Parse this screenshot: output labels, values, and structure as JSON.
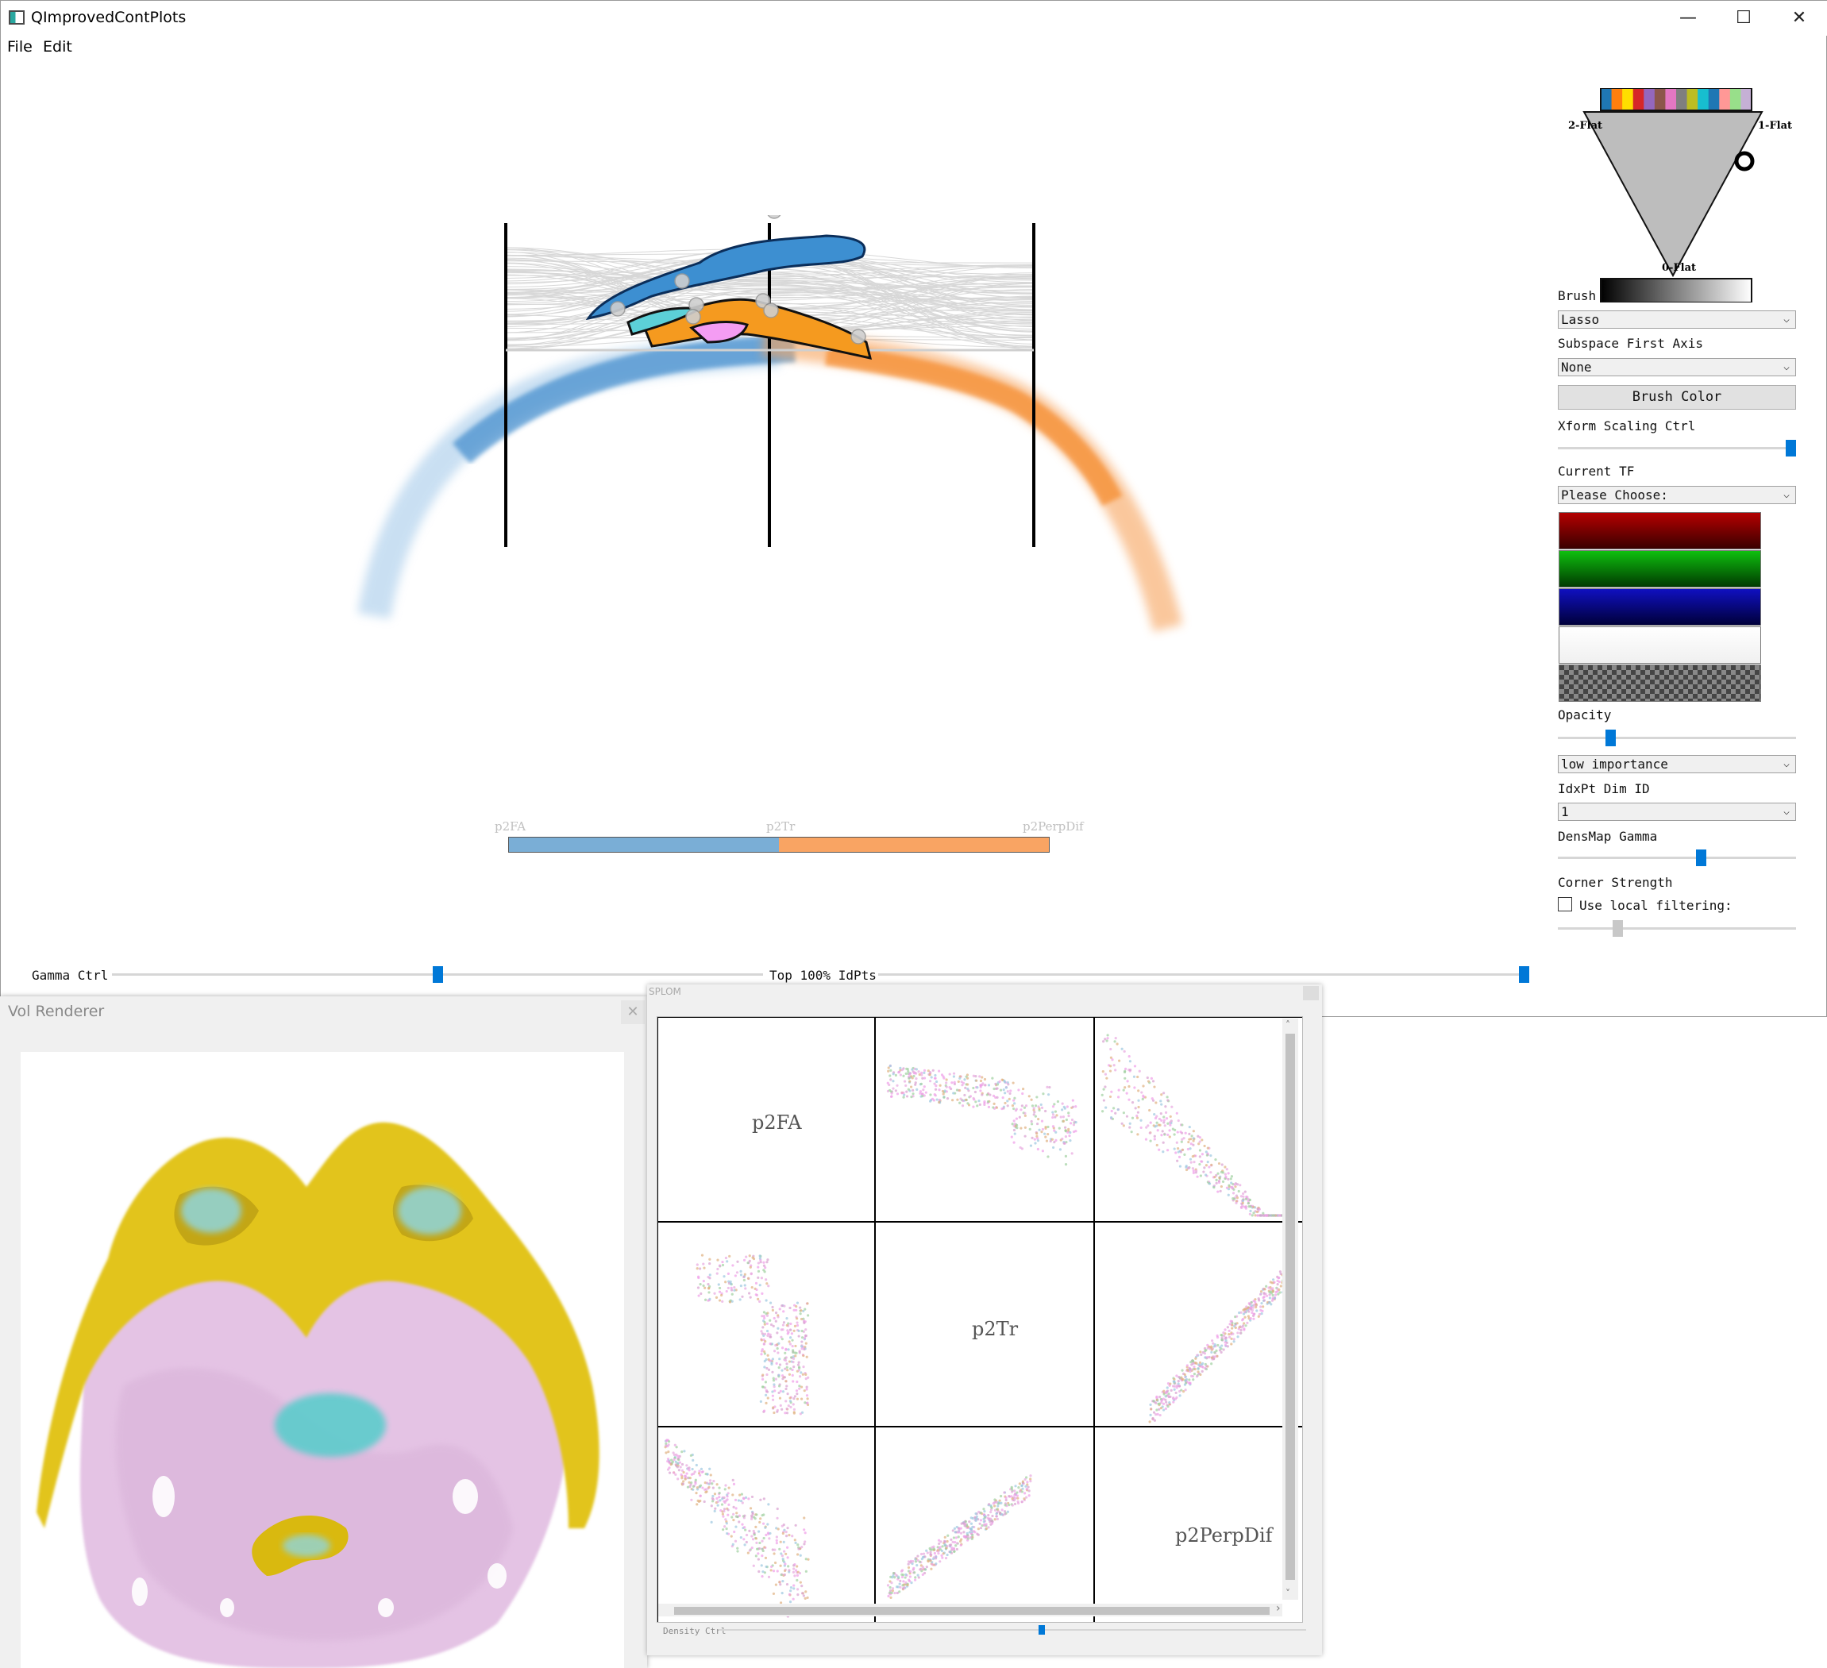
{
  "window": {
    "title": "QImprovedContPlots",
    "minimize_glyph": "—",
    "maximize_glyph": "☐",
    "close_glyph": "✕"
  },
  "menu": [
    "File",
    "Edit"
  ],
  "pcp": {
    "axes": [
      "p2FA",
      "p2Tr",
      "p2PerpDif"
    ],
    "bar_colors": [
      "#7aaed6",
      "#f9a463"
    ],
    "colors": {
      "blue": "#4a90d0",
      "orange": "#f5821f",
      "cyan": "#5ac8d8",
      "pink": "#f29bf0",
      "lines": "#b4b4b4"
    }
  },
  "barycentric": {
    "left_label": "2-Flat",
    "right_label": "1-Flat",
    "bottom_label": "0-Flat",
    "palette": [
      "#1f77b4",
      "#ff7f0e",
      "#ffdf00",
      "#d62728",
      "#9467bd",
      "#8c564b",
      "#e377c2",
      "#7f7f7f",
      "#bcbd22",
      "#17becf",
      "#1f77b4",
      "#ff9896",
      "#98df8a",
      "#c5b0d5"
    ]
  },
  "panel": {
    "brush_label": "Brush",
    "brush_value": "Lasso",
    "subspace_label": "Subspace First Axis",
    "subspace_value": "None",
    "brush_color_button": "Brush Color",
    "xform_label": "Xform Scaling Ctrl",
    "xform_value": 1.0,
    "current_tf_label": "Current TF",
    "current_tf_value": "Please Choose:",
    "opacity_label": "Opacity",
    "opacity_value": 0.22,
    "importance_value": "low importance",
    "idxpt_label": "IdxPt Dim ID",
    "idxpt_value": "1",
    "densmap_label": "DensMap Gamma",
    "densmap_value": 0.6,
    "corner_label": "Corner Strength",
    "local_filter_label": "Use local filtering:",
    "local_filter_checked": false,
    "corner_value": 0.25
  },
  "bottom": {
    "gamma_label": "Gamma Ctrl",
    "gamma_value": 0.5,
    "top_label": "Top 100% IdPts",
    "top_value": 1.0
  },
  "vol": {
    "title": "Vol Renderer",
    "close_glyph": "✕"
  },
  "splom": {
    "title": "SPLOM",
    "diagonal": [
      "p2FA",
      "p2Tr",
      "p2PerpDif"
    ],
    "density_label": "Density Ctrl",
    "density_value": 0.55,
    "scroll_up": "˄",
    "scroll_down": "˅",
    "scroll_right": "›"
  }
}
